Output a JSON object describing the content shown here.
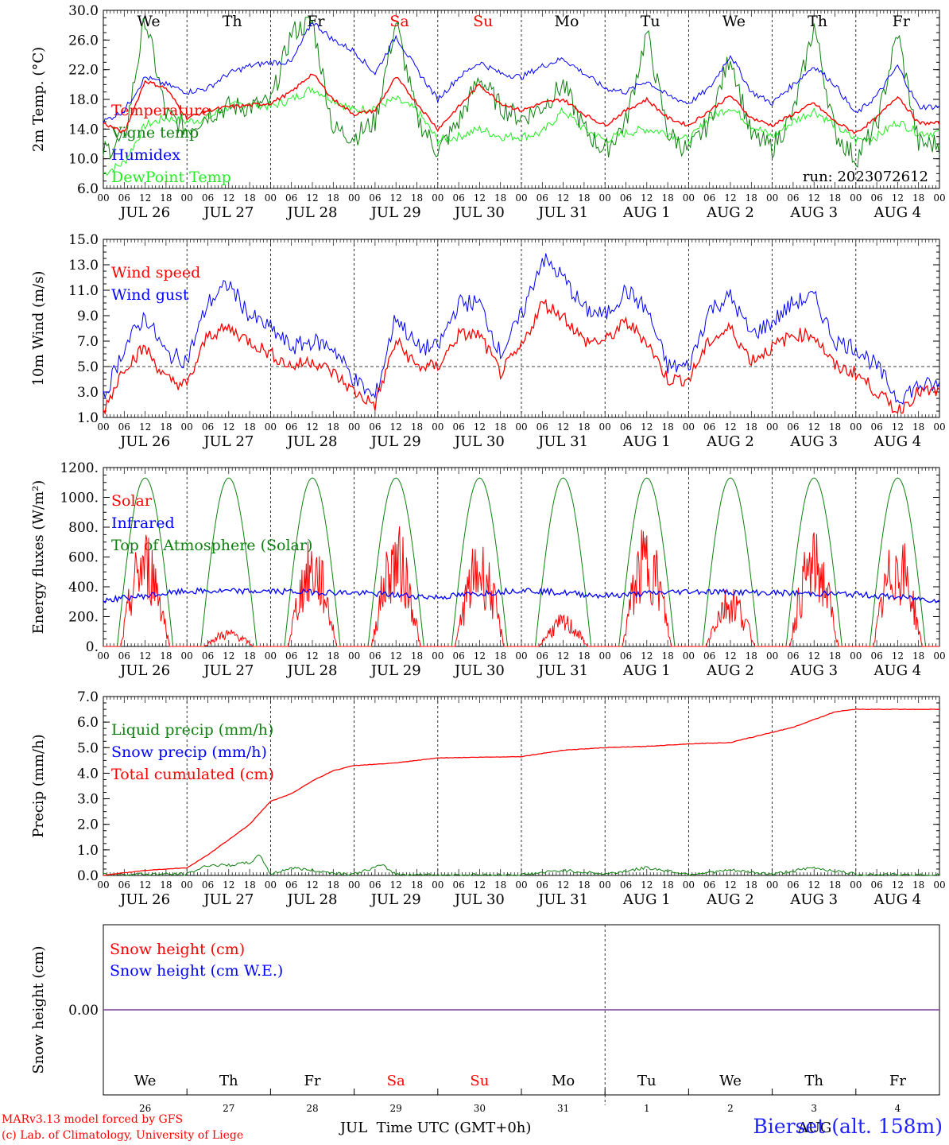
{
  "title": "",
  "footer": {
    "model_line": "MARv3.13 model forced by GFS",
    "credit_line": "(c) Lab. of Climatology, University of Liege",
    "station": "Bierset (alt. 158m)",
    "time_axis_label": "Time UTC (GMT+0h)",
    "month_left": "JUL",
    "month_right": "AUG"
  },
  "colors": {
    "red": "#ff0000",
    "darkgreen": "#108010",
    "blue": "#0000ff",
    "lightgreen": "#20ee20",
    "purple": "#7f3f9f",
    "weekend": "#ff0000",
    "weekday": "#000000"
  },
  "hour_labels": [
    "00",
    "06",
    "12",
    "18"
  ],
  "day_labels": [
    "JUL 26",
    "JUL 27",
    "JUL 28",
    "JUL 29",
    "JUL 30",
    "JUL 31",
    "AUG  1",
    "AUG  2",
    "AUG  3",
    "AUG  4"
  ],
  "weekdays": [
    {
      "label": "We",
      "weekend": false
    },
    {
      "label": "Th",
      "weekend": false
    },
    {
      "label": "Fr",
      "weekend": false
    },
    {
      "label": "Sa",
      "weekend": true
    },
    {
      "label": "Su",
      "weekend": true
    },
    {
      "label": "Mo",
      "weekend": false
    },
    {
      "label": "Tu",
      "weekend": false
    },
    {
      "label": "We",
      "weekend": false
    },
    {
      "label": "Th",
      "weekend": false
    },
    {
      "label": "Fr",
      "weekend": false
    }
  ],
  "day_numbers": [
    "26",
    "27",
    "28",
    "29",
    "30",
    "31",
    "1",
    "2",
    "3",
    "4"
  ],
  "chart_data": [
    {
      "type": "line",
      "ylabel": "2m Temp. (°C)",
      "ylim": [
        6.0,
        30.0
      ],
      "yticks": [
        "6.0",
        "10.0",
        "14.0",
        "18.0",
        "22.0",
        "26.0",
        "30.0"
      ],
      "annotation": "run: 2023072612",
      "x_unit": "hours since JUL 26 00 UTC",
      "series": [
        {
          "name": "Temperature",
          "color": "red",
          "x": [
            0,
            6,
            12,
            18,
            24,
            30,
            36,
            42,
            48,
            54,
            60,
            66,
            72,
            78,
            84,
            90,
            96,
            102,
            108,
            114,
            120,
            126,
            132,
            138,
            144,
            150,
            156,
            162,
            168,
            174,
            180,
            186,
            192,
            198,
            204,
            210,
            216,
            222,
            228,
            234
          ],
          "values": [
            14.8,
            13.5,
            20.5,
            19.5,
            15.5,
            16.5,
            17.0,
            17.2,
            17.5,
            19.0,
            21.5,
            18.0,
            16.0,
            16.5,
            21.0,
            17.5,
            14.0,
            17.0,
            20.0,
            17.5,
            16.5,
            17.5,
            18.0,
            16.0,
            14.5,
            16.5,
            18.0,
            15.5,
            14.5,
            16.5,
            18.5,
            15.5,
            14.5,
            16.0,
            17.5,
            15.0,
            13.5,
            15.5,
            18.5,
            14.8
          ]
        },
        {
          "name": "Vigne temp",
          "color": "darkgreen",
          "x": [
            0,
            6,
            12,
            18,
            24,
            30,
            36,
            42,
            48,
            54,
            60,
            66,
            72,
            78,
            84,
            90,
            96,
            102,
            108,
            114,
            120,
            126,
            132,
            138,
            144,
            150,
            156,
            162,
            168,
            174,
            180,
            186,
            192,
            198,
            204,
            210,
            216,
            222,
            228,
            234
          ],
          "values": [
            11.0,
            12.5,
            29.0,
            16.0,
            14.0,
            16.0,
            17.0,
            17.0,
            17.5,
            27.0,
            28.5,
            14.0,
            13.0,
            15.0,
            28.5,
            15.5,
            11.0,
            15.0,
            21.0,
            17.0,
            15.5,
            17.0,
            20.0,
            14.0,
            11.0,
            15.0,
            27.0,
            13.5,
            11.0,
            15.0,
            24.0,
            13.0,
            11.5,
            16.0,
            28.0,
            13.5,
            10.0,
            14.5,
            27.0,
            12.0
          ]
        },
        {
          "name": "Humidex",
          "color": "blue",
          "x": [
            0,
            6,
            12,
            18,
            24,
            30,
            36,
            42,
            48,
            54,
            60,
            66,
            72,
            78,
            84,
            90,
            96,
            102,
            108,
            114,
            120,
            126,
            132,
            138,
            144,
            150,
            156,
            162,
            168,
            174,
            180,
            186,
            192,
            198,
            204,
            210,
            216,
            222,
            228,
            234
          ],
          "values": [
            15.0,
            16.5,
            21.0,
            20.0,
            19.0,
            19.5,
            21.5,
            22.5,
            23.0,
            23.0,
            28.5,
            26.0,
            24.5,
            21.5,
            26.5,
            22.0,
            18.0,
            21.0,
            23.0,
            21.5,
            21.0,
            22.5,
            23.5,
            21.5,
            19.5,
            19.0,
            20.5,
            18.5,
            17.5,
            19.5,
            24.0,
            19.0,
            17.5,
            20.0,
            22.5,
            20.0,
            16.0,
            18.5,
            22.5,
            17.0
          ]
        },
        {
          "name": "DewPoint Temp",
          "color": "lightgreen",
          "x": [
            0,
            6,
            12,
            18,
            24,
            30,
            36,
            42,
            48,
            54,
            60,
            66,
            72,
            78,
            84,
            90,
            96,
            102,
            108,
            114,
            120,
            126,
            132,
            138,
            144,
            150,
            156,
            162,
            168,
            174,
            180,
            186,
            192,
            198,
            204,
            210,
            216,
            222,
            228,
            234
          ],
          "values": [
            8.0,
            9.5,
            14.5,
            15.5,
            15.0,
            15.5,
            17.0,
            17.5,
            17.0,
            18.0,
            19.5,
            18.0,
            16.5,
            17.0,
            18.0,
            16.5,
            12.5,
            13.0,
            14.0,
            13.0,
            13.0,
            13.5,
            16.5,
            14.0,
            12.5,
            13.5,
            14.0,
            13.5,
            12.5,
            15.5,
            17.0,
            14.5,
            13.0,
            15.0,
            16.5,
            14.5,
            12.5,
            13.0,
            15.0,
            13.5
          ]
        }
      ]
    },
    {
      "type": "line",
      "ylabel": "10m Wind (m/s)",
      "ylim": [
        1.0,
        15.0
      ],
      "yticks": [
        "1.0",
        "3.0",
        "5.0",
        "7.0",
        "9.0",
        "11.0",
        "13.0",
        "15.0"
      ],
      "reference_line": 5.0,
      "x_unit": "hours since JUL 26 00 UTC",
      "series": [
        {
          "name": "Wind speed",
          "color": "red",
          "x": [
            0,
            6,
            12,
            18,
            24,
            30,
            36,
            42,
            48,
            54,
            60,
            66,
            72,
            78,
            84,
            90,
            96,
            102,
            108,
            114,
            120,
            126,
            132,
            138,
            144,
            150,
            156,
            162,
            168,
            174,
            180,
            186,
            192,
            198,
            204,
            210,
            216,
            222,
            228,
            234
          ],
          "values": [
            1.5,
            5.0,
            6.5,
            4.0,
            3.5,
            7.5,
            8.0,
            7.0,
            6.0,
            5.0,
            5.5,
            4.5,
            3.0,
            2.0,
            7.0,
            5.0,
            5.0,
            7.5,
            7.5,
            4.5,
            6.5,
            10.0,
            9.0,
            7.0,
            7.0,
            8.5,
            7.0,
            4.0,
            4.0,
            7.0,
            8.0,
            5.5,
            6.5,
            7.5,
            7.5,
            5.0,
            4.5,
            3.0,
            1.5,
            3.0
          ]
        },
        {
          "name": "Wind gust",
          "color": "blue",
          "x": [
            0,
            6,
            12,
            18,
            24,
            30,
            36,
            42,
            48,
            54,
            60,
            66,
            72,
            78,
            84,
            90,
            96,
            102,
            108,
            114,
            120,
            126,
            132,
            138,
            144,
            150,
            156,
            162,
            168,
            174,
            180,
            186,
            192,
            198,
            204,
            210,
            216,
            222,
            228,
            234
          ],
          "values": [
            2.5,
            6.5,
            9.0,
            6.0,
            5.5,
            10.0,
            11.5,
            9.0,
            8.0,
            6.5,
            7.0,
            6.5,
            4.0,
            2.5,
            9.0,
            6.5,
            6.5,
            10.0,
            10.0,
            6.0,
            9.0,
            13.5,
            12.0,
            9.5,
            9.0,
            11.0,
            9.5,
            5.0,
            5.0,
            9.5,
            10.5,
            7.5,
            8.5,
            10.0,
            10.5,
            7.0,
            6.5,
            5.0,
            2.5,
            3.5
          ]
        }
      ]
    },
    {
      "type": "line",
      "ylabel": "Energy fluxes (W/m²)",
      "ylim": [
        0,
        1200
      ],
      "yticks": [
        "0.",
        "200.",
        "400.",
        "600.",
        "800.",
        "1000.",
        "1200."
      ],
      "x_unit": "hours since JUL 26 00 UTC",
      "daily_peak_solar": [
        800,
        120,
        740,
        830,
        730,
        220,
        830,
        430,
        780,
        780
      ],
      "series": [
        {
          "name": "Solar",
          "color": "red"
        },
        {
          "name": "Infrared",
          "color": "blue",
          "x": [
            0,
            24,
            48,
            72,
            96,
            120,
            144,
            168,
            192,
            216,
            240
          ],
          "values": [
            310,
            370,
            370,
            360,
            330,
            380,
            340,
            370,
            360,
            350,
            310
          ]
        },
        {
          "name": "Top of Atmosphere (Solar)",
          "color": "darkgreen",
          "peak": 1130
        }
      ]
    },
    {
      "type": "line",
      "ylabel": "Precip (mm/h)",
      "ylim": [
        0.0,
        7.0
      ],
      "yticks": [
        "0.0",
        "1.0",
        "2.0",
        "3.0",
        "4.0",
        "5.0",
        "6.0",
        "7.0"
      ],
      "x_unit": "hours since JUL 26 00 UTC",
      "series": [
        {
          "name": "Liquid precip (mm/h)",
          "color": "darkgreen",
          "x": [
            0,
            12,
            24,
            30,
            36,
            42,
            45,
            48,
            54,
            60,
            66,
            72,
            80,
            84,
            96,
            120,
            132,
            144,
            156,
            168,
            180,
            192,
            204,
            216,
            228,
            240
          ],
          "values": [
            0.05,
            0.05,
            0.05,
            0.4,
            0.4,
            0.5,
            0.8,
            0.05,
            0.3,
            0.2,
            0.1,
            0.05,
            0.4,
            0.05,
            0.02,
            0.02,
            0.2,
            0.05,
            0.3,
            0.05,
            0.2,
            0.05,
            0.3,
            0.05,
            0.02,
            0.02
          ]
        },
        {
          "name": "Snow precip (mm/h)",
          "color": "blue",
          "x": [
            0,
            240
          ],
          "values": [
            0,
            0
          ]
        },
        {
          "name": "Total cumulated (cm)",
          "color": "red",
          "x": [
            0,
            12,
            24,
            30,
            36,
            42,
            48,
            54,
            60,
            66,
            72,
            84,
            96,
            120,
            132,
            144,
            156,
            168,
            180,
            192,
            198,
            204,
            210,
            216,
            228,
            240
          ],
          "values": [
            0.0,
            0.2,
            0.3,
            0.8,
            1.4,
            2.0,
            2.9,
            3.2,
            3.7,
            4.1,
            4.3,
            4.4,
            4.6,
            4.65,
            4.9,
            5.0,
            5.05,
            5.15,
            5.2,
            5.6,
            5.8,
            6.1,
            6.4,
            6.5,
            6.5,
            6.5
          ]
        }
      ]
    },
    {
      "type": "line",
      "ylabel": "Snow height (cm)",
      "ytick": "0.00",
      "x_unit": "hours since JUL 26 00 UTC",
      "series": [
        {
          "name": "Snow height (cm)",
          "color": "red",
          "x": [
            0,
            240
          ],
          "values": [
            0,
            0
          ]
        },
        {
          "name": "Snow height (cm W.E.)",
          "color": "blue",
          "x": [
            0,
            240
          ],
          "values": [
            0,
            0
          ]
        }
      ]
    }
  ]
}
